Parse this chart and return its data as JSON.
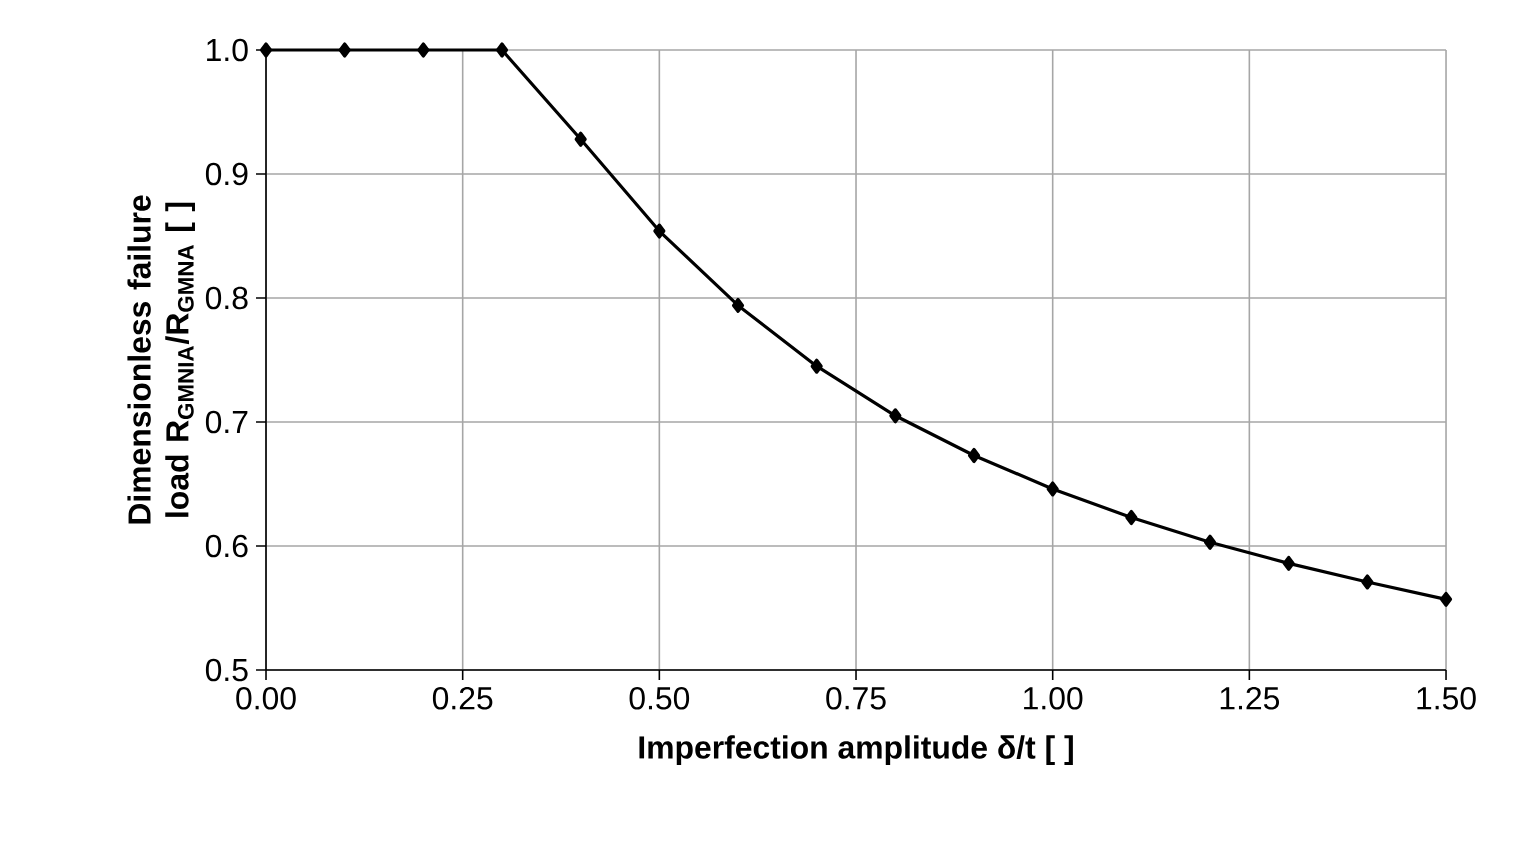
{
  "chart_data": {
    "type": "line",
    "xlabel": "Imperfection amplitude δ/t [ ]",
    "ylabel": "Dimensionless failure load R$_{GMNIA}$/R$_{GMNA}$ [ ]",
    "x": [
      0,
      0.1,
      0.2,
      0.3,
      0.4,
      0.5,
      0.6,
      0.7,
      0.8,
      0.9,
      1.0,
      1.1,
      1.2,
      1.3,
      1.4,
      1.5
    ],
    "series": [
      {
        "color": "#000000",
        "values": [
          1.0,
          1.0,
          1.0,
          1.0,
          0.928,
          0.854,
          0.794,
          0.745,
          0.705,
          0.673,
          0.646,
          0.623,
          0.603,
          0.586,
          0.571,
          0.557
        ]
      }
    ],
    "xlim": [
      0,
      1.5
    ],
    "ylim": [
      0.5,
      1.0
    ],
    "xticks": [
      {
        "value": 0,
        "label": "0.00"
      },
      {
        "value": 0.25,
        "label": "0.25"
      },
      {
        "value": 0.5,
        "label": "0.50"
      },
      {
        "value": 0.75,
        "label": "0.75"
      },
      {
        "value": 1.0,
        "label": "1.00"
      },
      {
        "value": 1.25,
        "label": "1.25"
      },
      {
        "value": 1.5,
        "label": "1.50"
      }
    ],
    "yticks": [
      0.5,
      0.6,
      0.7,
      0.8,
      0.9,
      {
        "value": 1.0,
        "label": "1.0"
      }
    ],
    "grid": true,
    "marker": "diamond",
    "line_style": "solid"
  }
}
